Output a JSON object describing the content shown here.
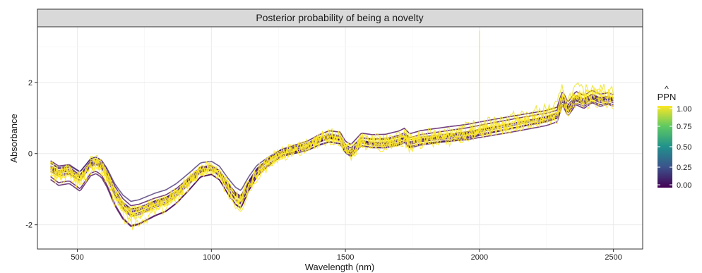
{
  "chart_data": {
    "type": "line",
    "title": "Posterior probability of being a novelty",
    "xlabel": "Wavelength (nm)",
    "ylabel": "Absorbance",
    "xlim": [
      351,
      2609
    ],
    "ylim": [
      -2.68,
      3.56
    ],
    "xticks": [
      500,
      1000,
      1500,
      2000,
      2500
    ],
    "yticks": [
      -2,
      0,
      2
    ],
    "grid": true,
    "legend": {
      "title": "PPN",
      "title_hat": "^",
      "position": "right",
      "ticks": [
        0,
        0.25,
        0.5,
        0.75,
        1
      ],
      "tick_labels": [
        "0.00",
        "0.25",
        "0.50",
        "0.75",
        "1.00"
      ],
      "colors": [
        "#440154",
        "#3b528b",
        "#21918c",
        "#5ec962",
        "#fde725"
      ]
    },
    "mean_spectrum": {
      "x": [
        400,
        430,
        470,
        510,
        550,
        570,
        590,
        610,
        640,
        670,
        700,
        730,
        760,
        790,
        830,
        870,
        920,
        960,
        1000,
        1030,
        1060,
        1090,
        1110,
        1140,
        1170,
        1210,
        1260,
        1310,
        1360,
        1400,
        1440,
        1480,
        1500,
        1520,
        1560,
        1600,
        1650,
        1700,
        1720,
        1740,
        1780,
        1850,
        1950,
        2050,
        2150,
        2250,
        2290,
        2310,
        2330,
        2360,
        2390,
        2420,
        2450,
        2480,
        2500
      ],
      "y": [
        -0.4,
        -0.55,
        -0.5,
        -0.7,
        -0.3,
        -0.25,
        -0.35,
        -0.6,
        -1.1,
        -1.45,
        -1.65,
        -1.6,
        -1.5,
        -1.4,
        -1.3,
        -1.1,
        -0.75,
        -0.45,
        -0.4,
        -0.55,
        -0.9,
        -1.2,
        -1.3,
        -0.85,
        -0.5,
        -0.25,
        0.0,
        0.1,
        0.2,
        0.35,
        0.45,
        0.4,
        0.15,
        0.05,
        0.35,
        0.3,
        0.3,
        0.38,
        0.45,
        0.3,
        0.38,
        0.45,
        0.55,
        0.7,
        0.85,
        1.0,
        1.1,
        1.55,
        1.25,
        1.55,
        1.45,
        1.6,
        1.5,
        1.55,
        1.5
      ]
    },
    "series": [
      {
        "offset": -0.3,
        "scale": 1.08,
        "ppn": 0.0
      },
      {
        "offset": 0.2,
        "scale": 0.95,
        "ppn": 0.0
      },
      {
        "offset": -0.15,
        "scale": 1.02,
        "ppn": 0.05
      },
      {
        "offset": 0.1,
        "scale": 1.0,
        "ppn": 0.08
      },
      {
        "offset": -0.05,
        "scale": 1.05,
        "ppn": 0.02
      },
      {
        "offset": 0.15,
        "scale": 0.9,
        "ppn": 0.12
      },
      {
        "offset": -0.22,
        "scale": 1.1,
        "ppn": 0.0
      },
      {
        "offset": 0.05,
        "scale": 0.97,
        "ppn": 0.03
      },
      {
        "offset": 0.25,
        "scale": 1.04,
        "ppn": 0.0
      },
      {
        "offset": -0.1,
        "scale": 0.93,
        "ppn": 0.06
      },
      {
        "offset": 0.0,
        "scale": 1.0,
        "ppn": 1.0
      },
      {
        "offset": 0.08,
        "scale": 1.06,
        "ppn": 1.0
      },
      {
        "offset": -0.08,
        "scale": 0.98,
        "ppn": 1.0
      },
      {
        "offset": 0.12,
        "scale": 1.12,
        "ppn": 0.97
      },
      {
        "offset": -0.18,
        "scale": 1.15,
        "ppn": 1.0
      },
      {
        "offset": 0.03,
        "scale": 1.02,
        "ppn": 1.0
      }
    ],
    "spike": {
      "x": 2000,
      "y": 3.45
    }
  }
}
